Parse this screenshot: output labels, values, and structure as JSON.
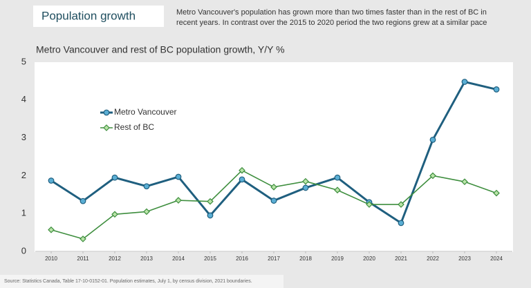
{
  "header": {
    "title": "Population growth",
    "description": [
      "Metro Vancouver's population has grown more than two times faster than in the rest of BC in",
      "recent years. In contrast over the 2015 to 2020 period the two regions grew at a similar pace"
    ]
  },
  "chart_data": {
    "type": "line",
    "title": "Metro Vancouver and rest of BC population growth, Y/Y %",
    "categories": [
      "2010",
      "2011",
      "2012",
      "2013",
      "2014",
      "2015",
      "2016",
      "2017",
      "2018",
      "2019",
      "2020",
      "2021",
      "2022",
      "2023",
      "2024"
    ],
    "series": [
      {
        "name": "Metro Vancouver",
        "color": "#1f5f7f",
        "marker": "circle",
        "values": [
          1.87,
          1.33,
          1.95,
          1.72,
          1.97,
          0.95,
          1.9,
          1.34,
          1.68,
          1.95,
          1.3,
          0.75,
          2.95,
          4.48,
          4.28
        ]
      },
      {
        "name": "Rest of BC",
        "color": "#3e8e3e",
        "marker": "diamond",
        "values": [
          0.57,
          0.33,
          0.98,
          1.05,
          1.35,
          1.32,
          2.14,
          1.7,
          1.85,
          1.62,
          1.24,
          1.24,
          2.0,
          1.84,
          1.54
        ]
      }
    ],
    "ylim": [
      0,
      5
    ],
    "yticks": [
      0,
      1,
      2,
      3,
      4,
      5
    ],
    "grid": false,
    "legend": "upper left"
  },
  "source": "Source:  Statistics Canada, Table 17-10-0152-01.  Population estimates, July 1, by census division, 2021 boundaries."
}
